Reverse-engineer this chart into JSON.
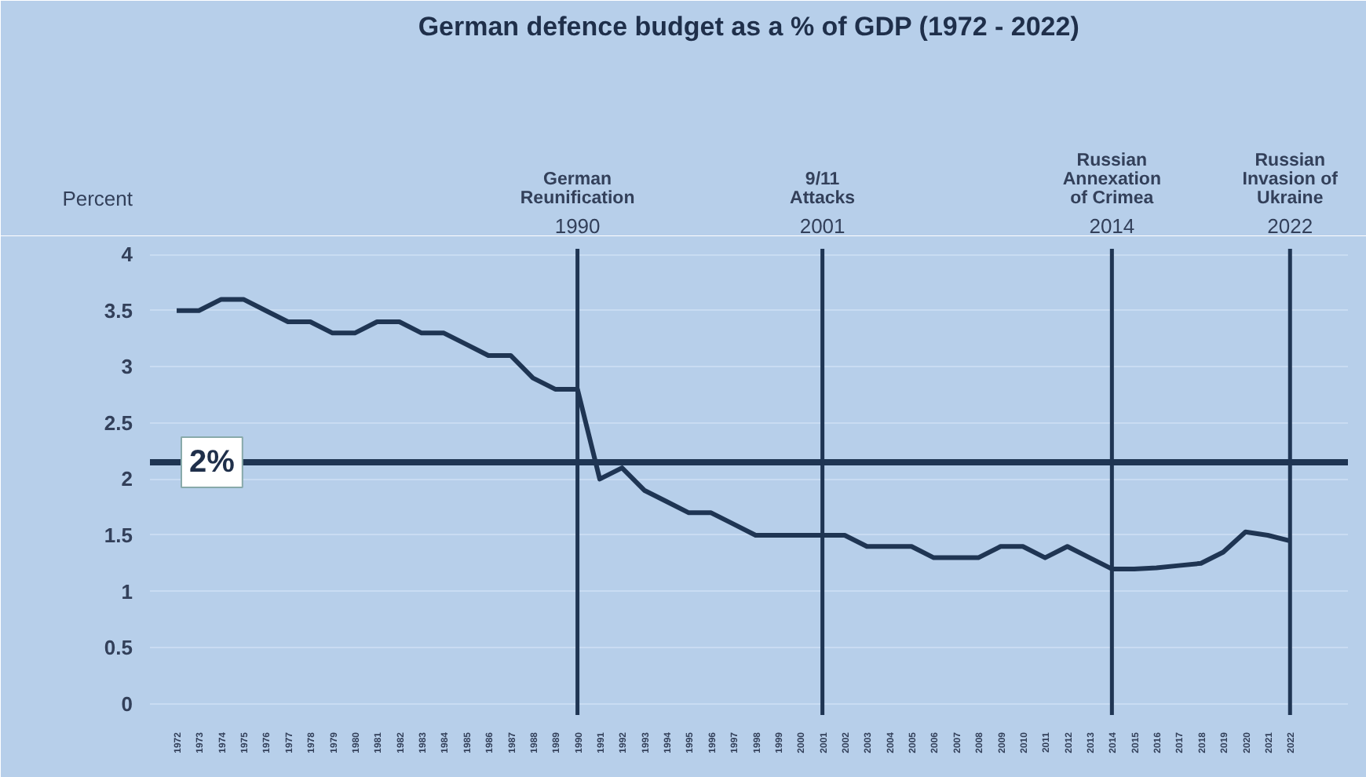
{
  "chart_data": {
    "type": "line",
    "title": "German defence budget as a % of GDP (1972 - 2022)",
    "ylabel": "Percent",
    "x": [
      1972,
      1973,
      1974,
      1975,
      1976,
      1977,
      1978,
      1979,
      1980,
      1981,
      1982,
      1983,
      1984,
      1985,
      1986,
      1987,
      1988,
      1989,
      1990,
      1991,
      1992,
      1993,
      1994,
      1995,
      1996,
      1997,
      1998,
      1999,
      2000,
      2001,
      2002,
      2003,
      2004,
      2005,
      2006,
      2007,
      2008,
      2009,
      2010,
      2011,
      2012,
      2013,
      2014,
      2015,
      2016,
      2017,
      2018,
      2019,
      2020,
      2021,
      2022
    ],
    "series": [
      {
        "color": "#1f3553",
        "values": [
          3.5,
          3.5,
          3.6,
          3.6,
          3.5,
          3.4,
          3.4,
          3.3,
          3.3,
          3.4,
          3.4,
          3.3,
          3.3,
          3.2,
          3.1,
          3.1,
          2.9,
          2.8,
          2.8,
          2.0,
          2.1,
          1.9,
          1.8,
          1.7,
          1.7,
          1.6,
          1.5,
          1.5,
          1.5,
          1.5,
          1.5,
          1.4,
          1.4,
          1.4,
          1.3,
          1.3,
          1.3,
          1.4,
          1.4,
          1.3,
          1.4,
          1.3,
          1.2,
          1.2,
          1.21,
          1.23,
          1.25,
          1.35,
          1.53,
          1.5,
          1.45
        ]
      }
    ],
    "xlim": [
      1970.8,
      2024.6
    ],
    "xticks": [
      1972,
      1973,
      1974,
      1975,
      1976,
      1977,
      1978,
      1979,
      1980,
      1981,
      1982,
      1983,
      1984,
      1985,
      1986,
      1987,
      1988,
      1989,
      1990,
      1991,
      1992,
      1993,
      1994,
      1995,
      1996,
      1997,
      1998,
      1999,
      2000,
      2001,
      2002,
      2003,
      2004,
      2005,
      2006,
      2007,
      2008,
      2009,
      2010,
      2011,
      2012,
      2013,
      2014,
      2015,
      2016,
      2017,
      2018,
      2019,
      2020,
      2021,
      2022
    ],
    "ylim": [
      -0.1,
      4.05
    ],
    "yticks": [
      0,
      0.5,
      1,
      1.5,
      2,
      2.5,
      3,
      3.5,
      4
    ],
    "ref_lines": [
      {
        "axis": "y",
        "value": 2.15,
        "label": "2%",
        "color": "#1f3553"
      },
      {
        "axis": "x",
        "value": 1990,
        "label": "German\nReunification\n1990",
        "color": "#1f3553"
      },
      {
        "axis": "x",
        "value": 2001,
        "label": "9/11\nAttacks\n2001",
        "color": "#1f3553"
      },
      {
        "axis": "x",
        "value": 2014,
        "label": "Russian\nAnnexation\nof Crimea\n2014",
        "color": "#1f3553"
      },
      {
        "axis": "x",
        "value": 2022,
        "label": "Russian\nInvasion of\nUkraine\n2022",
        "color": "#1f3553"
      }
    ],
    "grid": "y",
    "marker": "none",
    "line_style": "solid"
  }
}
